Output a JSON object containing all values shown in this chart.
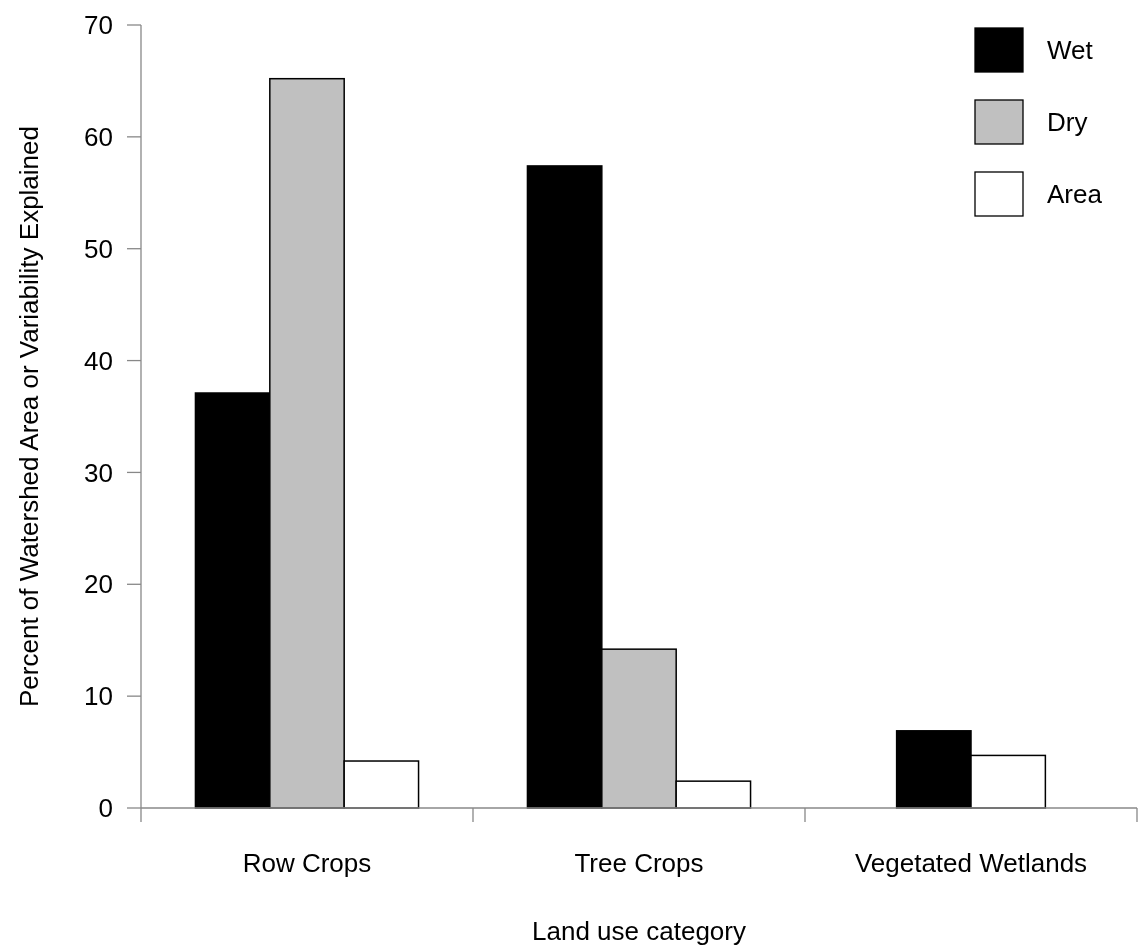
{
  "chart_data": {
    "type": "bar",
    "xlabel": "Land use category",
    "ylabel": "Percent of Watershed Area or Variability Explained",
    "categories": [
      "Row Crops",
      "Tree Crops",
      "Vegetated Wetlands"
    ],
    "series": [
      {
        "name": "Wet",
        "color": "#000000",
        "values": [
          37.1,
          57.4,
          6.9
        ]
      },
      {
        "name": "Dry",
        "color": "#c0c0c0",
        "values": [
          65.2,
          14.2,
          null
        ]
      },
      {
        "name": "Area",
        "color": "#ffffff",
        "values": [
          4.2,
          2.4,
          4.7
        ]
      }
    ],
    "ylim": [
      0,
      70
    ],
    "yticks": [
      0,
      10,
      20,
      30,
      40,
      50,
      60,
      70
    ],
    "grid": false,
    "legend": "top right"
  }
}
